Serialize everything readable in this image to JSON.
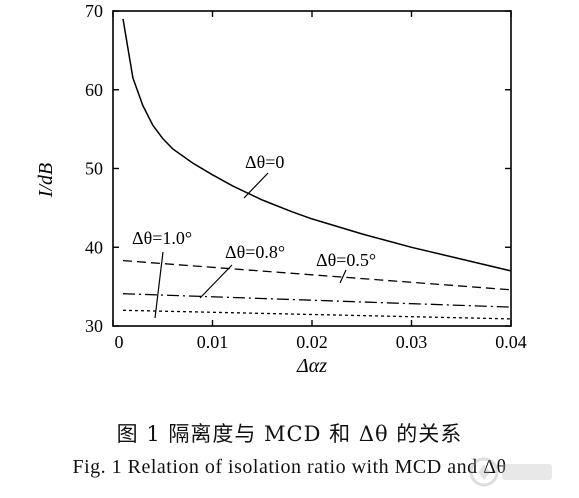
{
  "chart_data": {
    "type": "line",
    "xlabel": "Δαz",
    "ylabel": "I/dB",
    "xlim": [
      0,
      0.04
    ],
    "ylim": [
      30,
      70
    ],
    "xticks": [
      0.0,
      0.01,
      0.02,
      0.03,
      0.04
    ],
    "xtick_labels": [
      "0",
      "0.01",
      "0.02",
      "0.03",
      "0.04"
    ],
    "yticks": [
      30,
      40,
      50,
      60,
      70
    ],
    "ytick_labels": [
      "30",
      "40",
      "50",
      "60",
      "70"
    ],
    "grid": false,
    "legend": "none",
    "series": [
      {
        "name": "Δθ=0",
        "style": "solid",
        "x": [
          0.001,
          0.002,
          0.003,
          0.004,
          0.005,
          0.006,
          0.008,
          0.01,
          0.012,
          0.015,
          0.018,
          0.02,
          0.025,
          0.03,
          0.035,
          0.04
        ],
        "y": [
          69.0,
          61.5,
          58.0,
          55.5,
          53.8,
          52.5,
          50.7,
          49.2,
          47.8,
          46.0,
          44.5,
          43.6,
          41.7,
          40.0,
          38.5,
          37.0
        ]
      },
      {
        "name": "Δθ=0.5°",
        "style": "dashed",
        "x": [
          0.001,
          0.04
        ],
        "y": [
          38.3,
          34.6
        ]
      },
      {
        "name": "Δθ=0.8°",
        "style": "dashdot",
        "x": [
          0.001,
          0.04
        ],
        "y": [
          34.1,
          32.4
        ]
      },
      {
        "name": "Δθ=1.0°",
        "style": "dotted",
        "x": [
          0.001,
          0.04
        ],
        "y": [
          32.0,
          30.9
        ]
      }
    ],
    "annotations": [
      {
        "text": "Δθ=0",
        "target_series": 0
      },
      {
        "text": "Δθ=0.5°",
        "target_series": 1
      },
      {
        "text": "Δθ=0.8°",
        "target_series": 2
      },
      {
        "text": "Δθ=1.0°",
        "target_series": 3
      }
    ]
  },
  "caption": {
    "chinese": "图 1   隔离度与 MCD 和 Δθ 的关系",
    "english": "Fig. 1   Relation of isolation ratio with MCD and Δθ"
  }
}
